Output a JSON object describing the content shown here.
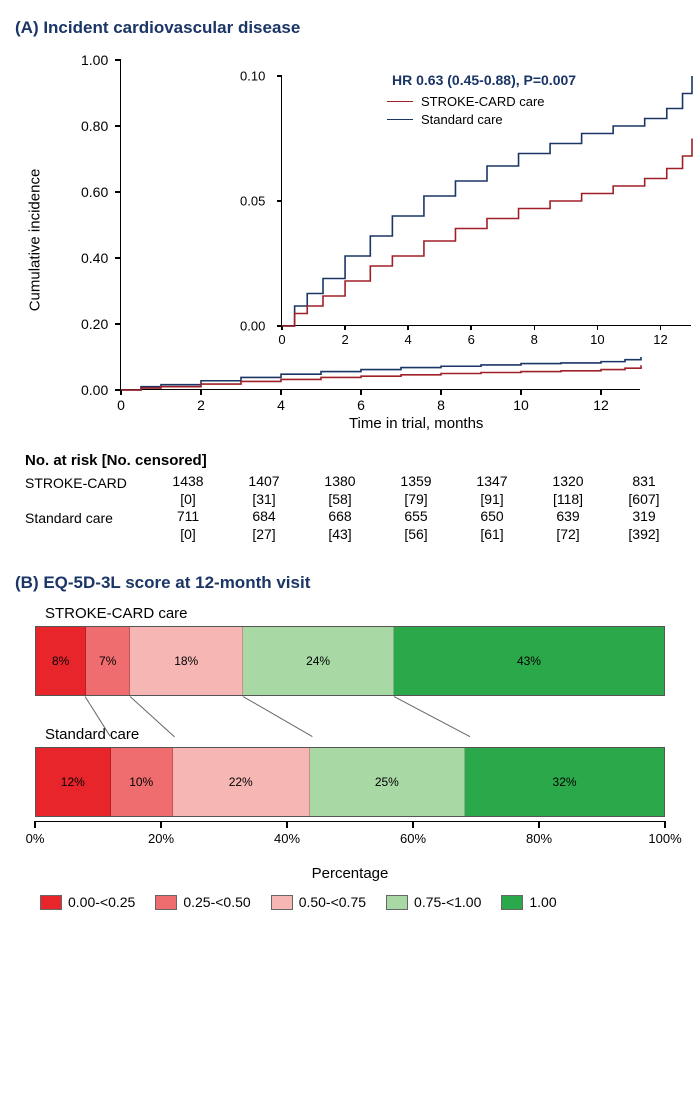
{
  "panelA": {
    "title": "(A) Incident cardiovascular disease",
    "ylabel": "Cumulative incidence",
    "xlabel": "Time in trial, months",
    "hr_text": "HR 0.63 (0.45-0.88), P=0.007",
    "main": {
      "xlim": [
        0,
        13
      ],
      "ylim": [
        0,
        1.0
      ],
      "yticks": [
        0.0,
        0.2,
        0.4,
        0.6,
        0.8,
        1.0
      ],
      "ytick_labels": [
        "0.00",
        "0.20",
        "0.40",
        "0.60",
        "0.80",
        "1.00"
      ],
      "xticks": [
        0,
        2,
        4,
        6,
        8,
        10,
        12
      ],
      "series": {
        "stroke_card": {
          "color": "#a02028",
          "points": [
            [
              0,
              0
            ],
            [
              0.5,
              0.006
            ],
            [
              1,
              0.01
            ],
            [
              2,
              0.018
            ],
            [
              3,
              0.026
            ],
            [
              4,
              0.032
            ],
            [
              5,
              0.038
            ],
            [
              6,
              0.042
            ],
            [
              7,
              0.046
            ],
            [
              8,
              0.05
            ],
            [
              9,
              0.053
            ],
            [
              10,
              0.056
            ],
            [
              11,
              0.058
            ],
            [
              12,
              0.062
            ],
            [
              12.6,
              0.066
            ],
            [
              13,
              0.075
            ]
          ]
        },
        "standard": {
          "color": "#1a3566",
          "points": [
            [
              0,
              0
            ],
            [
              0.5,
              0.01
            ],
            [
              1,
              0.016
            ],
            [
              2,
              0.028
            ],
            [
              3,
              0.038
            ],
            [
              4,
              0.048
            ],
            [
              5,
              0.056
            ],
            [
              6,
              0.062
            ],
            [
              7,
              0.068
            ],
            [
              8,
              0.072
            ],
            [
              9,
              0.076
            ],
            [
              10,
              0.08
            ],
            [
              11,
              0.082
            ],
            [
              12,
              0.086
            ],
            [
              12.6,
              0.092
            ],
            [
              13,
              0.1
            ]
          ]
        }
      }
    },
    "inset": {
      "xlim": [
        0,
        13
      ],
      "ylim": [
        0,
        0.1
      ],
      "yticks": [
        0.0,
        0.05,
        0.1
      ],
      "ytick_labels": [
        "0.00",
        "0.05",
        "0.10"
      ],
      "xticks": [
        0,
        2,
        4,
        6,
        8,
        10,
        12
      ],
      "legend": [
        {
          "label": "STROKE-CARD care",
          "color": "#a02028"
        },
        {
          "label": "Standard care",
          "color": "#1a3566"
        }
      ],
      "series": {
        "stroke_card": {
          "color": "#a02028",
          "points": [
            [
              0,
              0
            ],
            [
              0.4,
              0.005
            ],
            [
              0.8,
              0.008
            ],
            [
              1.3,
              0.012
            ],
            [
              2,
              0.018
            ],
            [
              2.8,
              0.024
            ],
            [
              3.5,
              0.028
            ],
            [
              4.5,
              0.034
            ],
            [
              5.5,
              0.039
            ],
            [
              6.5,
              0.043
            ],
            [
              7.5,
              0.047
            ],
            [
              8.5,
              0.05
            ],
            [
              9.5,
              0.053
            ],
            [
              10.5,
              0.056
            ],
            [
              11.5,
              0.059
            ],
            [
              12.2,
              0.063
            ],
            [
              12.7,
              0.068
            ],
            [
              13,
              0.075
            ]
          ]
        },
        "standard": {
          "color": "#1a3566",
          "points": [
            [
              0,
              0
            ],
            [
              0.4,
              0.008
            ],
            [
              0.8,
              0.013
            ],
            [
              1.3,
              0.019
            ],
            [
              2,
              0.028
            ],
            [
              2.8,
              0.036
            ],
            [
              3.5,
              0.044
            ],
            [
              4.5,
              0.052
            ],
            [
              5.5,
              0.058
            ],
            [
              6.5,
              0.064
            ],
            [
              7.5,
              0.069
            ],
            [
              8.5,
              0.073
            ],
            [
              9.5,
              0.077
            ],
            [
              10.5,
              0.08
            ],
            [
              11.5,
              0.083
            ],
            [
              12.2,
              0.087
            ],
            [
              12.7,
              0.093
            ],
            [
              13,
              0.1
            ]
          ]
        }
      }
    },
    "risk_table": {
      "title": "No. at risk [No. censored]",
      "rows": [
        {
          "label": "STROKE-CARD",
          "n": [
            "1438",
            "1407",
            "1380",
            "1359",
            "1347",
            "1320",
            "831"
          ],
          "c": [
            "[0]",
            "[31]",
            "[58]",
            "[79]",
            "[91]",
            "[118]",
            "[607]"
          ]
        },
        {
          "label": "Standard care",
          "n": [
            "711",
            "684",
            "668",
            "655",
            "650",
            "639",
            "319"
          ],
          "c": [
            "[0]",
            "[27]",
            "[43]",
            "[56]",
            "[61]",
            "[72]",
            "[392]"
          ]
        }
      ]
    }
  },
  "panelB": {
    "title": "(B) EQ-5D-3L score at 12-month visit",
    "xlabel": "Percentage",
    "xticks": [
      0,
      20,
      40,
      60,
      80,
      100
    ],
    "xtick_labels": [
      "0%",
      "20%",
      "40%",
      "60%",
      "80%",
      "100%"
    ],
    "bars": [
      {
        "label": "STROKE-CARD care",
        "segs": [
          {
            "pct": 8,
            "label": "8%",
            "color": "#e8252b"
          },
          {
            "pct": 7,
            "label": "7%",
            "color": "#ef6d6e"
          },
          {
            "pct": 18,
            "label": "18%",
            "color": "#f6b6b4"
          },
          {
            "pct": 24,
            "label": "24%",
            "color": "#a8d9a4"
          },
          {
            "pct": 43,
            "label": "43%",
            "color": "#2ba84a"
          }
        ]
      },
      {
        "label": "Standard care",
        "segs": [
          {
            "pct": 12,
            "label": "12%",
            "color": "#e8252b"
          },
          {
            "pct": 10,
            "label": "10%",
            "color": "#ef6d6e"
          },
          {
            "pct": 22,
            "label": "22%",
            "color": "#f6b6b4"
          },
          {
            "pct": 25,
            "label": "25%",
            "color": "#a8d9a4"
          },
          {
            "pct": 32,
            "label": "32%",
            "color": "#2ba84a"
          }
        ]
      }
    ],
    "legend": [
      {
        "label": "0.00-<0.25",
        "color": "#e8252b"
      },
      {
        "label": "0.25-<0.50",
        "color": "#ef6d6e"
      },
      {
        "label": "0.50-<0.75",
        "color": "#f6b6b4"
      },
      {
        "label": "0.75-<1.00",
        "color": "#a8d9a4"
      },
      {
        "label": "1.00",
        "color": "#2ba84a"
      }
    ]
  }
}
